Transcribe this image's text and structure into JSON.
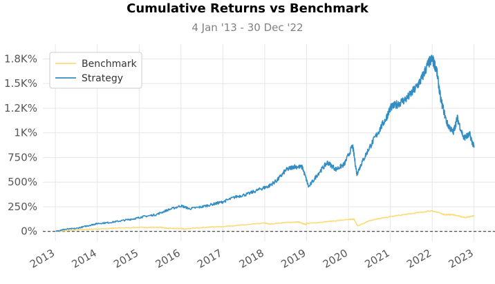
{
  "chart_data": {
    "type": "line",
    "title": "Cumulative Returns vs Benchmark",
    "subtitle": "4 Jan '13 - 30 Dec '22",
    "xlabel": "",
    "ylabel": "",
    "xlim": [
      2012.7,
      2023.5
    ],
    "ylim": [
      -100,
      1900
    ],
    "x_ticks": [
      2013,
      2014,
      2015,
      2016,
      2017,
      2018,
      2019,
      2020,
      2021,
      2022,
      2023
    ],
    "x_tick_labels": [
      "2013",
      "2014",
      "2015",
      "2016",
      "2017",
      "2018",
      "2019",
      "2020",
      "2021",
      "2022",
      "2023"
    ],
    "y_ticks": [
      0,
      250,
      500,
      750,
      1000,
      1250,
      1500,
      1750
    ],
    "y_tick_labels": [
      "0%",
      "250%",
      "500%",
      "750%",
      "1K%",
      "1.2K%",
      "1.5K%",
      "1.8K%"
    ],
    "grid": true,
    "legend_position": "top-left",
    "colors": {
      "benchmark": "#fed976",
      "strategy": "#348dc1",
      "zero_line": "#000000",
      "grid": "#e6e6e6"
    },
    "series": [
      {
        "name": "Benchmark",
        "x": [
          2013.01,
          2013.5,
          2014.0,
          2014.5,
          2015.0,
          2015.5,
          2015.7,
          2016.0,
          2016.1,
          2016.5,
          2017.0,
          2017.5,
          2018.0,
          2018.1,
          2018.5,
          2018.8,
          2018.98,
          2019.0,
          2019.5,
          2020.0,
          2020.13,
          2020.22,
          2020.5,
          2021.0,
          2021.5,
          2022.0,
          2022.3,
          2022.5,
          2022.78,
          2023.0
        ],
        "values": [
          0,
          15,
          25,
          35,
          40,
          42,
          30,
          30,
          25,
          40,
          50,
          65,
          85,
          75,
          90,
          95,
          70,
          80,
          100,
          120,
          125,
          55,
          110,
          150,
          180,
          210,
          170,
          170,
          140,
          160
        ]
      },
      {
        "name": "Strategy",
        "x": [
          2013.01,
          2013.2,
          2013.5,
          2013.8,
          2014.0,
          2014.3,
          2014.6,
          2014.9,
          2015.1,
          2015.4,
          2015.7,
          2016.0,
          2016.2,
          2016.5,
          2016.8,
          2017.0,
          2017.3,
          2017.6,
          2017.9,
          2018.1,
          2018.3,
          2018.5,
          2018.7,
          2018.9,
          2019.05,
          2019.3,
          2019.5,
          2019.7,
          2019.9,
          2020.1,
          2020.2,
          2020.3,
          2020.5,
          2020.7,
          2020.9,
          2021.0,
          2021.2,
          2021.4,
          2021.6,
          2021.75,
          2021.9,
          2022.0,
          2022.1,
          2022.2,
          2022.35,
          2022.5,
          2022.6,
          2022.75,
          2022.9,
          2023.0
        ],
        "values": [
          0,
          20,
          30,
          60,
          80,
          90,
          110,
          130,
          150,
          170,
          220,
          260,
          230,
          250,
          280,
          300,
          350,
          380,
          430,
          460,
          520,
          620,
          660,
          650,
          450,
          600,
          700,
          630,
          680,
          870,
          580,
          680,
          850,
          1000,
          1150,
          1250,
          1300,
          1350,
          1450,
          1550,
          1700,
          1750,
          1650,
          1350,
          1100,
          1000,
          1150,
          950,
          980,
          850
        ]
      }
    ]
  }
}
